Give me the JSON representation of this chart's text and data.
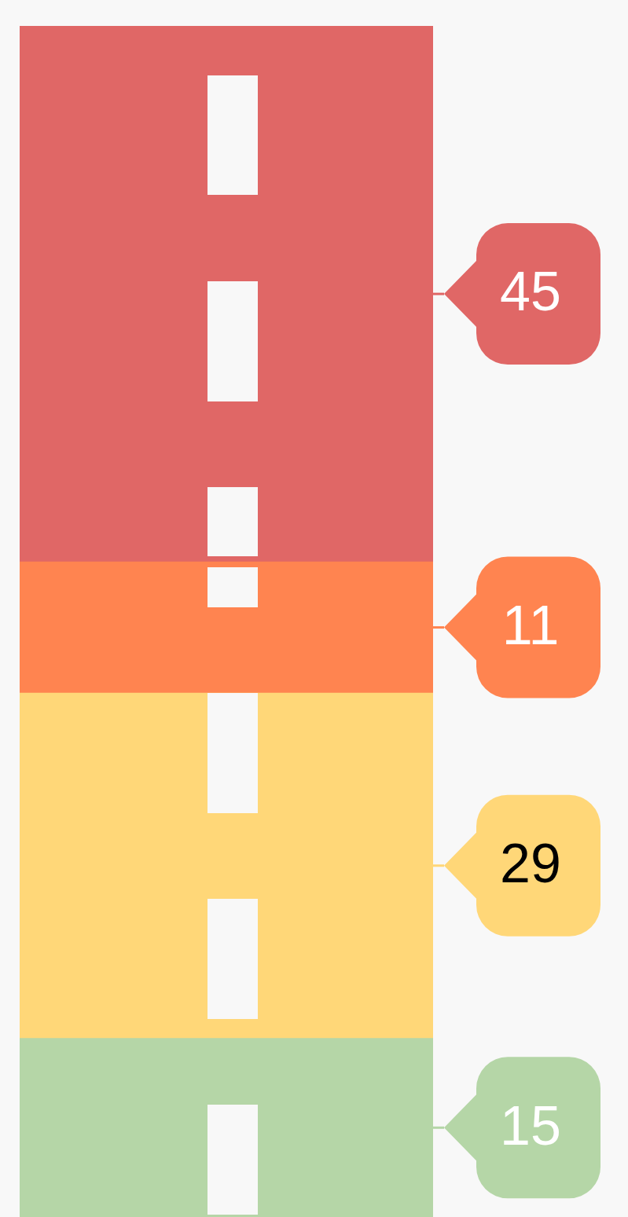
{
  "chart_data": {
    "type": "bar",
    "stacked": true,
    "categories": [
      null
    ],
    "data_labels": true,
    "legend": false,
    "series": [
      {
        "color": "#b5d6a7",
        "values": [
          15
        ]
      },
      {
        "color": "#ffd778",
        "values": [
          29
        ]
      },
      {
        "color": "#ff8450",
        "values": [
          11
        ]
      },
      {
        "color": "#e06766",
        "values": [
          45
        ]
      }
    ]
  }
}
